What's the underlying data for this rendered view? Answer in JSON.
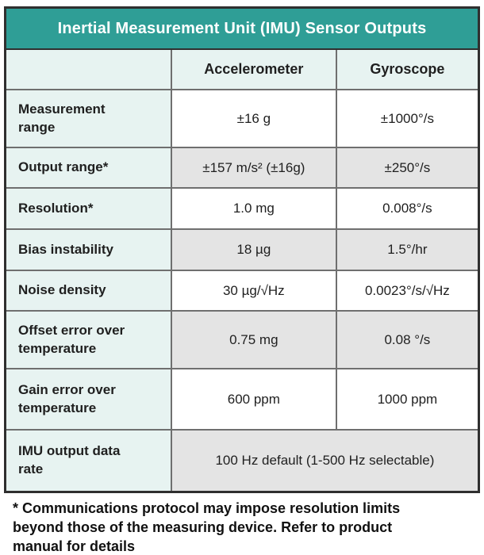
{
  "title": "Inertial Measurement Unit (IMU) Sensor Outputs",
  "table": {
    "columns": [
      "",
      "Accelerometer",
      "Gyroscope"
    ],
    "rows": [
      {
        "label": "Measurement\nrange",
        "accel": "±16 g",
        "gyro": "±1000°/s"
      },
      {
        "label": "Output range*",
        "accel": "±157 m/s² (±16g)",
        "gyro": "±250°/s"
      },
      {
        "label": "Resolution*",
        "accel": "1.0 mg",
        "gyro": "0.008°/s"
      },
      {
        "label": "Bias instability",
        "accel": "18 µg",
        "gyro": "1.5°/hr"
      },
      {
        "label": "Noise density",
        "accel": "30 µg/√Hz",
        "gyro": "0.0023°/s/√Hz"
      },
      {
        "label": "Offset error over\ntemperature",
        "accel": "0.75 mg",
        "gyro": "0.08 °/s"
      },
      {
        "label": "Gain error over\ntemperature",
        "accel": "600 ppm",
        "gyro": "1000 ppm"
      },
      {
        "label": "IMU output data\nrate",
        "value": "100 Hz default (1-500 Hz selectable)"
      }
    ]
  },
  "footnote": "* Communications protocol may impose resolution limits\nbeyond those of the measuring device. Refer to product\nmanual for details",
  "colors": {
    "header_teal": "#2F9E96",
    "label_cell_teal": "#E7F3F1",
    "stripe_gray": "#E4E4E4",
    "outer_border": "#2F2F2F",
    "inner_border": "#6F6F6F",
    "text": "#1F1F1F",
    "title_text": "#FFFFFF"
  }
}
